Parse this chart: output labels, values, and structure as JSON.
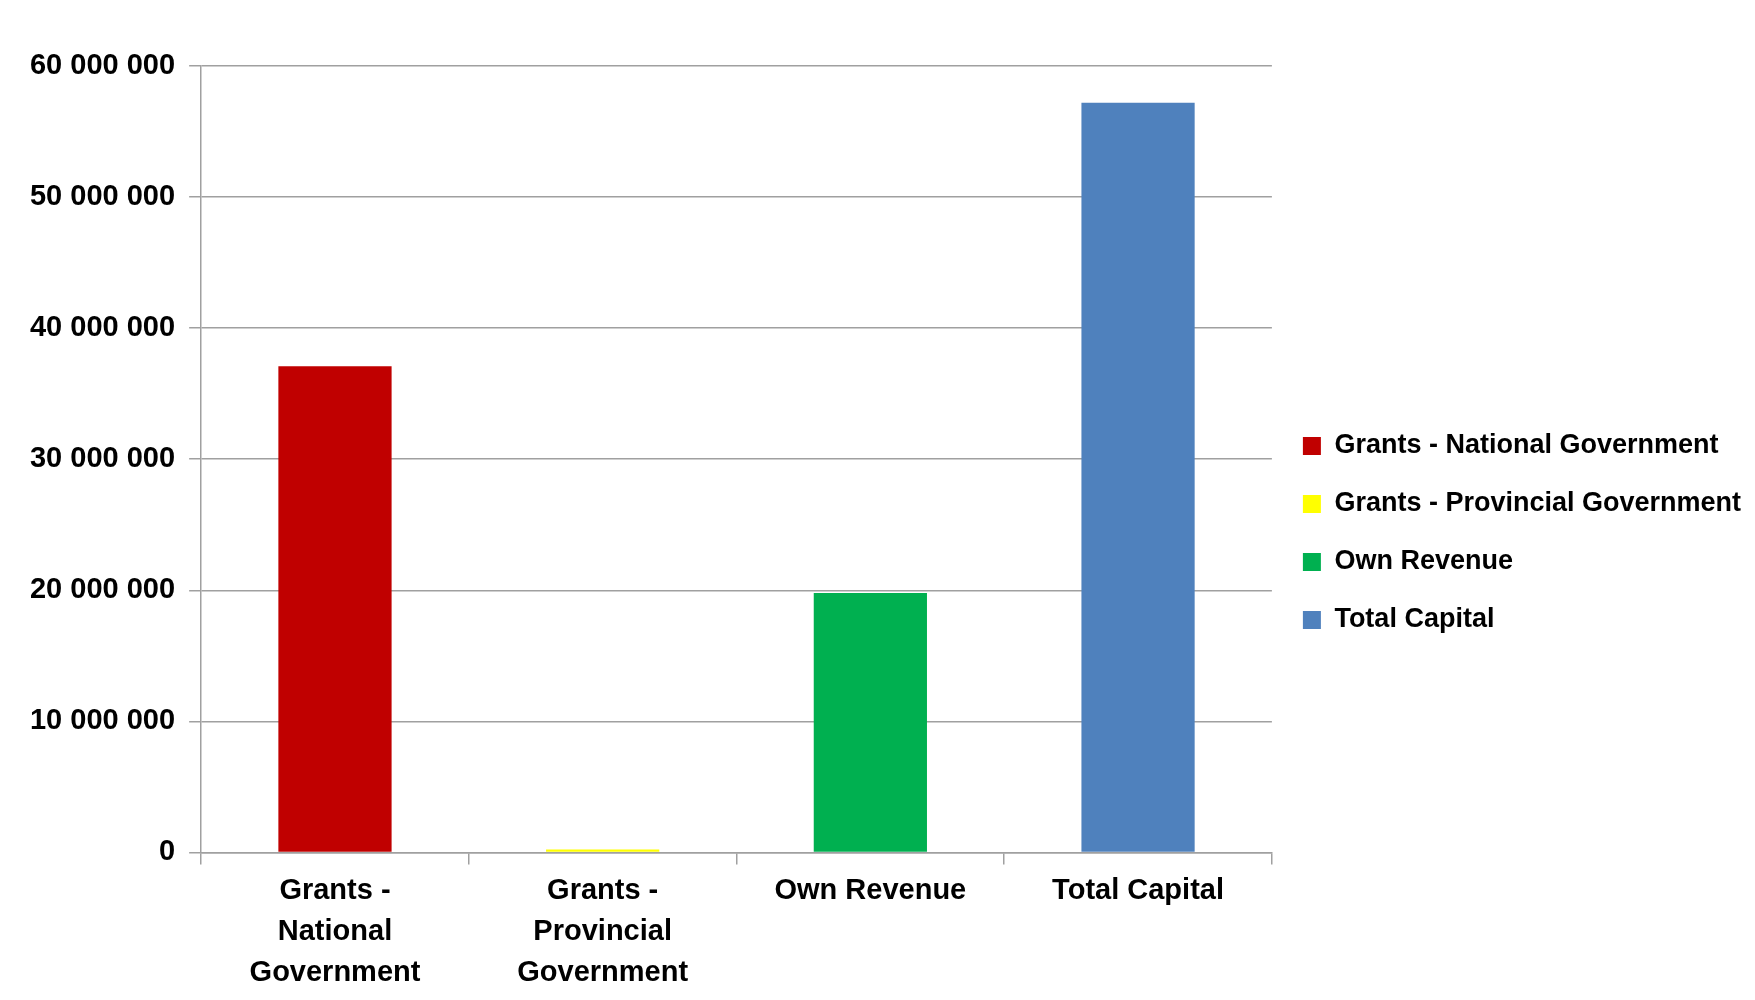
{
  "chart_data": {
    "type": "bar",
    "categories": [
      "Grants - National Government",
      "Grants - Provincial Government",
      "Own Revenue",
      "Total Capital"
    ],
    "series": [
      {
        "name": "Grants - National Government",
        "color": "#c00000",
        "values": [
          37100000,
          null,
          null,
          null
        ]
      },
      {
        "name": "Grants - Provincial Government",
        "color": "#ffff00",
        "values": [
          null,
          0,
          null,
          null
        ]
      },
      {
        "name": "Own Revenue",
        "color": "#00b050",
        "values": [
          null,
          null,
          19800000,
          null
        ]
      },
      {
        "name": "Total Capital",
        "color": "#4f81bd",
        "values": [
          null,
          null,
          null,
          57200000
        ]
      }
    ],
    "ylim": [
      0,
      60000000
    ],
    "yticks": [
      {
        "value": 0,
        "label": "0"
      },
      {
        "value": 10000000,
        "label": "10 000 000"
      },
      {
        "value": 20000000,
        "label": "20 000 000"
      },
      {
        "value": 30000000,
        "label": "30 000 000"
      },
      {
        "value": 40000000,
        "label": "40 000 000"
      },
      {
        "value": 50000000,
        "label": "50 000 000"
      },
      {
        "value": 60000000,
        "label": "60 000 000"
      }
    ],
    "grid": "y",
    "legend": "right"
  }
}
